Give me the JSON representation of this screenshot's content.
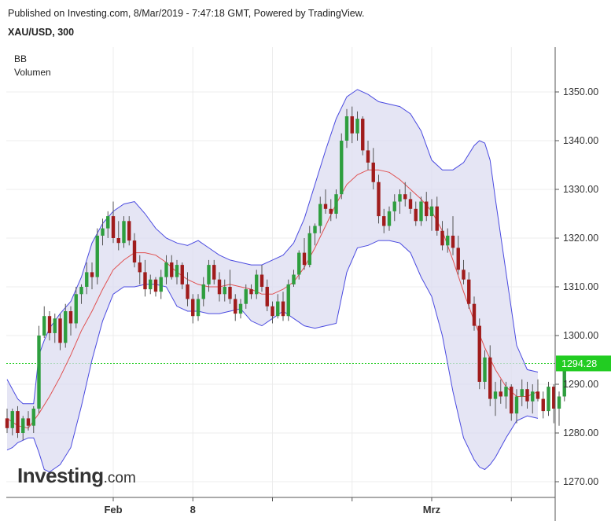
{
  "header": {
    "published": "Published on Investing.com, 8/Mar/2019 - 7:47:18 GMT, Powered by TradingView.",
    "symbol": "XAU/USD, 300"
  },
  "indicators": [
    "BB",
    "Volumen"
  ],
  "logo": {
    "main": "Investing",
    "sub": ".com"
  },
  "colors": {
    "up": "#2e9e3e",
    "down": "#a01c1c",
    "band_line": "#4a4ae0",
    "band_fill": "#dcdcf0",
    "basis": "#e05050",
    "current_price": "#22cc22"
  },
  "chart_data": {
    "type": "candlestick",
    "title": "XAU/USD, 300",
    "ylim": [
      1267,
      1358
    ],
    "y_ticks": [
      1270.0,
      1280.0,
      1290.0,
      1300.0,
      1310.0,
      1320.0,
      1330.0,
      1340.0,
      1350.0
    ],
    "x_ticks": [
      {
        "label": "Feb",
        "index": 20
      },
      {
        "label": "8",
        "index": 35
      },
      {
        "label": "",
        "index": 50
      },
      {
        "label": "",
        "index": 65
      },
      {
        "label": "Mrz",
        "index": 80
      },
      {
        "label": "",
        "index": 95
      }
    ],
    "current_price": 1294.28,
    "current_price_label": "1294.28",
    "indicators": [
      "BB",
      "Volumen"
    ],
    "ohlc": [
      [
        1283.0,
        1285.0,
        1280.0,
        1281.0
      ],
      [
        1281.0,
        1285.0,
        1279.5,
        1284.5
      ],
      [
        1284.5,
        1285.5,
        1279.0,
        1280.0
      ],
      [
        1280.0,
        1283.5,
        1278.5,
        1283.0
      ],
      [
        1283.0,
        1284.5,
        1280.5,
        1281.5
      ],
      [
        1281.5,
        1285.5,
        1280.0,
        1285.0
      ],
      [
        1285.0,
        1302.0,
        1284.0,
        1300.0
      ],
      [
        1300.0,
        1306.0,
        1299.5,
        1304.0
      ],
      [
        1304.0,
        1305.0,
        1299.0,
        1300.5
      ],
      [
        1300.5,
        1304.5,
        1298.5,
        1303.5
      ],
      [
        1303.5,
        1304.5,
        1297.0,
        1298.5
      ],
      [
        1298.5,
        1306.5,
        1297.5,
        1305.0
      ],
      [
        1305.0,
        1306.0,
        1300.0,
        1302.5
      ],
      [
        1302.5,
        1310.0,
        1301.5,
        1308.5
      ],
      [
        1308.5,
        1310.5,
        1306.5,
        1310.0
      ],
      [
        1310.0,
        1315.0,
        1308.5,
        1313.0
      ],
      [
        1313.0,
        1315.0,
        1309.5,
        1312.0
      ],
      [
        1312.0,
        1322.0,
        1310.5,
        1320.5
      ],
      [
        1320.5,
        1324.0,
        1318.5,
        1322.0
      ],
      [
        1322.0,
        1325.5,
        1320.0,
        1324.5
      ],
      [
        1324.5,
        1327.5,
        1319.0,
        1320.0
      ],
      [
        1320.0,
        1323.5,
        1317.5,
        1319.0
      ],
      [
        1319.0,
        1324.5,
        1318.0,
        1323.5
      ],
      [
        1323.5,
        1324.5,
        1318.5,
        1319.5
      ],
      [
        1319.5,
        1321.0,
        1314.0,
        1315.0
      ],
      [
        1315.0,
        1316.5,
        1310.5,
        1313.0
      ],
      [
        1313.0,
        1315.5,
        1308.0,
        1309.5
      ],
      [
        1309.5,
        1312.5,
        1308.5,
        1311.5
      ],
      [
        1311.5,
        1312.0,
        1308.0,
        1309.0
      ],
      [
        1309.0,
        1313.5,
        1307.5,
        1312.0
      ],
      [
        1312.0,
        1316.5,
        1310.5,
        1315.0
      ],
      [
        1315.0,
        1316.5,
        1311.5,
        1312.0
      ],
      [
        1312.0,
        1315.5,
        1310.5,
        1314.5
      ],
      [
        1314.5,
        1315.0,
        1309.5,
        1310.5
      ],
      [
        1310.5,
        1313.0,
        1306.0,
        1307.5
      ],
      [
        1307.5,
        1308.5,
        1302.5,
        1304.0
      ],
      [
        1304.0,
        1308.5,
        1303.0,
        1307.5
      ],
      [
        1307.5,
        1312.0,
        1306.0,
        1310.5
      ],
      [
        1310.5,
        1315.5,
        1309.0,
        1314.5
      ],
      [
        1314.5,
        1315.5,
        1310.5,
        1311.5
      ],
      [
        1311.5,
        1313.0,
        1307.0,
        1308.5
      ],
      [
        1308.5,
        1311.5,
        1307.0,
        1310.0
      ],
      [
        1310.0,
        1313.5,
        1306.5,
        1307.5
      ],
      [
        1307.5,
        1308.5,
        1303.0,
        1304.5
      ],
      [
        1304.5,
        1307.5,
        1303.5,
        1306.5
      ],
      [
        1306.5,
        1310.5,
        1305.5,
        1309.5
      ],
      [
        1309.5,
        1310.5,
        1307.5,
        1308.5
      ],
      [
        1308.5,
        1313.5,
        1307.5,
        1312.5
      ],
      [
        1312.5,
        1314.5,
        1309.0,
        1310.0
      ],
      [
        1310.0,
        1311.5,
        1305.0,
        1306.0
      ],
      [
        1306.0,
        1307.0,
        1302.5,
        1304.0
      ],
      [
        1304.0,
        1308.5,
        1303.5,
        1307.0
      ],
      [
        1307.0,
        1309.0,
        1303.0,
        1304.0
      ],
      [
        1304.0,
        1311.5,
        1303.0,
        1310.5
      ],
      [
        1310.5,
        1313.5,
        1310.0,
        1312.5
      ],
      [
        1312.5,
        1317.5,
        1311.5,
        1317.0
      ],
      [
        1317.0,
        1320.0,
        1313.5,
        1314.5
      ],
      [
        1314.5,
        1322.5,
        1314.0,
        1321.0
      ],
      [
        1321.0,
        1323.0,
        1318.5,
        1322.5
      ],
      [
        1322.5,
        1328.5,
        1321.0,
        1327.0
      ],
      [
        1327.0,
        1330.0,
        1325.0,
        1326.0
      ],
      [
        1326.0,
        1328.0,
        1323.5,
        1325.0
      ],
      [
        1325.0,
        1330.0,
        1324.0,
        1329.0
      ],
      [
        1329.0,
        1341.5,
        1328.0,
        1340.0
      ],
      [
        1340.0,
        1346.5,
        1338.5,
        1345.0
      ],
      [
        1345.0,
        1347.0,
        1339.5,
        1341.5
      ],
      [
        1341.5,
        1346.0,
        1340.0,
        1344.5
      ],
      [
        1344.5,
        1345.0,
        1337.0,
        1338.0
      ],
      [
        1338.0,
        1340.0,
        1334.0,
        1335.5
      ],
      [
        1335.5,
        1338.5,
        1330.0,
        1331.5
      ],
      [
        1331.5,
        1333.0,
        1323.0,
        1324.5
      ],
      [
        1324.5,
        1326.0,
        1321.0,
        1322.5
      ],
      [
        1322.5,
        1326.5,
        1321.5,
        1325.5
      ],
      [
        1325.5,
        1329.0,
        1323.5,
        1327.5
      ],
      [
        1327.5,
        1330.0,
        1325.0,
        1329.0
      ],
      [
        1329.0,
        1331.5,
        1326.5,
        1328.0
      ],
      [
        1328.0,
        1329.5,
        1325.0,
        1326.0
      ],
      [
        1326.0,
        1327.5,
        1322.5,
        1323.5
      ],
      [
        1323.5,
        1328.5,
        1322.5,
        1327.5
      ],
      [
        1327.5,
        1329.5,
        1323.5,
        1324.5
      ],
      [
        1324.5,
        1328.0,
        1321.5,
        1326.5
      ],
      [
        1326.5,
        1328.5,
        1320.5,
        1321.5
      ],
      [
        1321.5,
        1323.5,
        1317.5,
        1318.5
      ],
      [
        1318.5,
        1322.0,
        1317.0,
        1320.5
      ],
      [
        1320.5,
        1324.5,
        1316.5,
        1318.0
      ],
      [
        1318.0,
        1320.5,
        1312.5,
        1313.5
      ],
      [
        1313.5,
        1315.5,
        1310.5,
        1311.5
      ],
      [
        1311.5,
        1313.0,
        1305.5,
        1306.5
      ],
      [
        1306.5,
        1308.0,
        1301.0,
        1302.0
      ],
      [
        1302.0,
        1303.5,
        1289.0,
        1290.5
      ],
      [
        1290.5,
        1297.0,
        1289.0,
        1295.5
      ],
      [
        1295.5,
        1298.0,
        1285.5,
        1287.0
      ],
      [
        1287.0,
        1290.5,
        1283.5,
        1288.5
      ],
      [
        1288.5,
        1291.0,
        1286.0,
        1287.5
      ],
      [
        1287.5,
        1290.5,
        1285.0,
        1289.5
      ],
      [
        1289.5,
        1290.0,
        1282.5,
        1284.0
      ],
      [
        1284.0,
        1289.0,
        1282.0,
        1287.5
      ],
      [
        1287.5,
        1291.0,
        1285.5,
        1289.0
      ],
      [
        1289.0,
        1290.5,
        1285.0,
        1286.5
      ],
      [
        1286.5,
        1290.0,
        1284.0,
        1288.5
      ],
      [
        1288.5,
        1291.0,
        1286.5,
        1287.0
      ],
      [
        1287.0,
        1288.5,
        1283.0,
        1284.5
      ],
      [
        1284.5,
        1290.5,
        1283.5,
        1289.5
      ],
      [
        1289.5,
        1290.0,
        1282.0,
        1285.0
      ],
      [
        1285.0,
        1288.5,
        1281.5,
        1287.5
      ],
      [
        1287.5,
        1295.0,
        1286.5,
        1294.28
      ]
    ],
    "bollinger": {
      "upper": [
        [
          0,
          1291.0
        ],
        [
          1,
          1289.0
        ],
        [
          2,
          1287.0
        ],
        [
          3,
          1286.0
        ],
        [
          4,
          1286.0
        ],
        [
          5,
          1286.0
        ],
        [
          6,
          1296.0
        ],
        [
          7,
          1299.0
        ],
        [
          8,
          1301.5
        ],
        [
          10,
          1304.5
        ],
        [
          12,
          1307.0
        ],
        [
          14,
          1312.0
        ],
        [
          16,
          1319.0
        ],
        [
          18,
          1323.0
        ],
        [
          20,
          1325.5
        ],
        [
          22,
          1327.0
        ],
        [
          24,
          1327.5
        ],
        [
          26,
          1325.0
        ],
        [
          28,
          1322.0
        ],
        [
          30,
          1320.0
        ],
        [
          32,
          1319.0
        ],
        [
          34,
          1318.5
        ],
        [
          36,
          1319.5
        ],
        [
          38,
          1318.0
        ],
        [
          40,
          1316.5
        ],
        [
          42,
          1315.5
        ],
        [
          44,
          1315.0
        ],
        [
          46,
          1314.5
        ],
        [
          48,
          1314.5
        ],
        [
          50,
          1315.5
        ],
        [
          52,
          1316.5
        ],
        [
          54,
          1319.0
        ],
        [
          56,
          1324.0
        ],
        [
          58,
          1331.0
        ],
        [
          60,
          1338.0
        ],
        [
          62,
          1344.5
        ],
        [
          64,
          1349.0
        ],
        [
          66,
          1350.5
        ],
        [
          68,
          1349.5
        ],
        [
          70,
          1348.0
        ],
        [
          72,
          1347.5
        ],
        [
          74,
          1347.0
        ],
        [
          76,
          1345.5
        ],
        [
          78,
          1342.0
        ],
        [
          80,
          1336.0
        ],
        [
          82,
          1334.0
        ],
        [
          84,
          1334.0
        ],
        [
          86,
          1335.5
        ],
        [
          88,
          1339.0
        ],
        [
          89,
          1340.0
        ],
        [
          90,
          1339.5
        ],
        [
          91,
          1336.0
        ],
        [
          92,
          1328.0
        ],
        [
          94,
          1313.0
        ],
        [
          96,
          1298.0
        ],
        [
          98,
          1293.0
        ],
        [
          100,
          1292.5
        ]
      ],
      "lower": [
        [
          0,
          1276.5
        ],
        [
          1,
          1277.0
        ],
        [
          2,
          1278.0
        ],
        [
          3,
          1278.5
        ],
        [
          4,
          1279.0
        ],
        [
          5,
          1279.0
        ],
        [
          6,
          1276.0
        ],
        [
          7,
          1272.5
        ],
        [
          8,
          1272.0
        ],
        [
          10,
          1273.5
        ],
        [
          12,
          1277.0
        ],
        [
          14,
          1285.5
        ],
        [
          16,
          1295.0
        ],
        [
          18,
          1303.0
        ],
        [
          20,
          1308.5
        ],
        [
          22,
          1310.0
        ],
        [
          24,
          1310.0
        ],
        [
          26,
          1310.5
        ],
        [
          28,
          1310.5
        ],
        [
          30,
          1310.0
        ],
        [
          32,
          1306.0
        ],
        [
          34,
          1305.0
        ],
        [
          36,
          1305.0
        ],
        [
          38,
          1304.5
        ],
        [
          40,
          1304.5
        ],
        [
          42,
          1305.0
        ],
        [
          44,
          1305.5
        ],
        [
          46,
          1303.0
        ],
        [
          48,
          1302.0
        ],
        [
          50,
          1303.5
        ],
        [
          52,
          1305.0
        ],
        [
          54,
          1303.5
        ],
        [
          56,
          1302.0
        ],
        [
          58,
          1301.5
        ],
        [
          60,
          1302.0
        ],
        [
          62,
          1302.5
        ],
        [
          64,
          1313.0
        ],
        [
          66,
          1318.0
        ],
        [
          68,
          1318.5
        ],
        [
          70,
          1319.5
        ],
        [
          72,
          1319.5
        ],
        [
          74,
          1319.0
        ],
        [
          76,
          1317.0
        ],
        [
          78,
          1312.0
        ],
        [
          80,
          1308.0
        ],
        [
          82,
          1300.0
        ],
        [
          84,
          1288.5
        ],
        [
          86,
          1279.0
        ],
        [
          88,
          1274.5
        ],
        [
          89,
          1273.0
        ],
        [
          90,
          1272.5
        ],
        [
          91,
          1273.5
        ],
        [
          92,
          1275.0
        ],
        [
          94,
          1279.0
        ],
        [
          96,
          1282.5
        ],
        [
          98,
          1283.5
        ],
        [
          100,
          1283.0
        ]
      ],
      "basis": [
        [
          0,
          1283.0
        ],
        [
          2,
          1281.5
        ],
        [
          4,
          1281.0
        ],
        [
          6,
          1284.0
        ],
        [
          8,
          1287.5
        ],
        [
          10,
          1291.5
        ],
        [
          12,
          1296.0
        ],
        [
          14,
          1301.0
        ],
        [
          16,
          1305.0
        ],
        [
          18,
          1309.5
        ],
        [
          20,
          1313.5
        ],
        [
          22,
          1315.5
        ],
        [
          24,
          1317.0
        ],
        [
          26,
          1317.0
        ],
        [
          28,
          1316.5
        ],
        [
          30,
          1315.0
        ],
        [
          32,
          1313.0
        ],
        [
          34,
          1311.5
        ],
        [
          36,
          1310.5
        ],
        [
          38,
          1310.0
        ],
        [
          40,
          1310.0
        ],
        [
          42,
          1310.5
        ],
        [
          44,
          1310.0
        ],
        [
          46,
          1309.5
        ],
        [
          48,
          1308.5
        ],
        [
          50,
          1308.5
        ],
        [
          52,
          1309.5
        ],
        [
          54,
          1311.0
        ],
        [
          56,
          1314.0
        ],
        [
          58,
          1318.0
        ],
        [
          60,
          1322.5
        ],
        [
          62,
          1327.0
        ],
        [
          64,
          1331.0
        ],
        [
          66,
          1333.0
        ],
        [
          68,
          1334.0
        ],
        [
          70,
          1334.0
        ],
        [
          72,
          1333.5
        ],
        [
          74,
          1332.0
        ],
        [
          76,
          1330.0
        ],
        [
          78,
          1328.0
        ],
        [
          80,
          1325.5
        ],
        [
          82,
          1321.5
        ],
        [
          84,
          1315.5
        ],
        [
          86,
          1309.0
        ],
        [
          88,
          1303.0
        ],
        [
          90,
          1297.5
        ],
        [
          92,
          1293.0
        ],
        [
          94,
          1289.5
        ],
        [
          96,
          1287.5
        ],
        [
          98,
          1287.5
        ],
        [
          100,
          1288.5
        ]
      ]
    }
  }
}
